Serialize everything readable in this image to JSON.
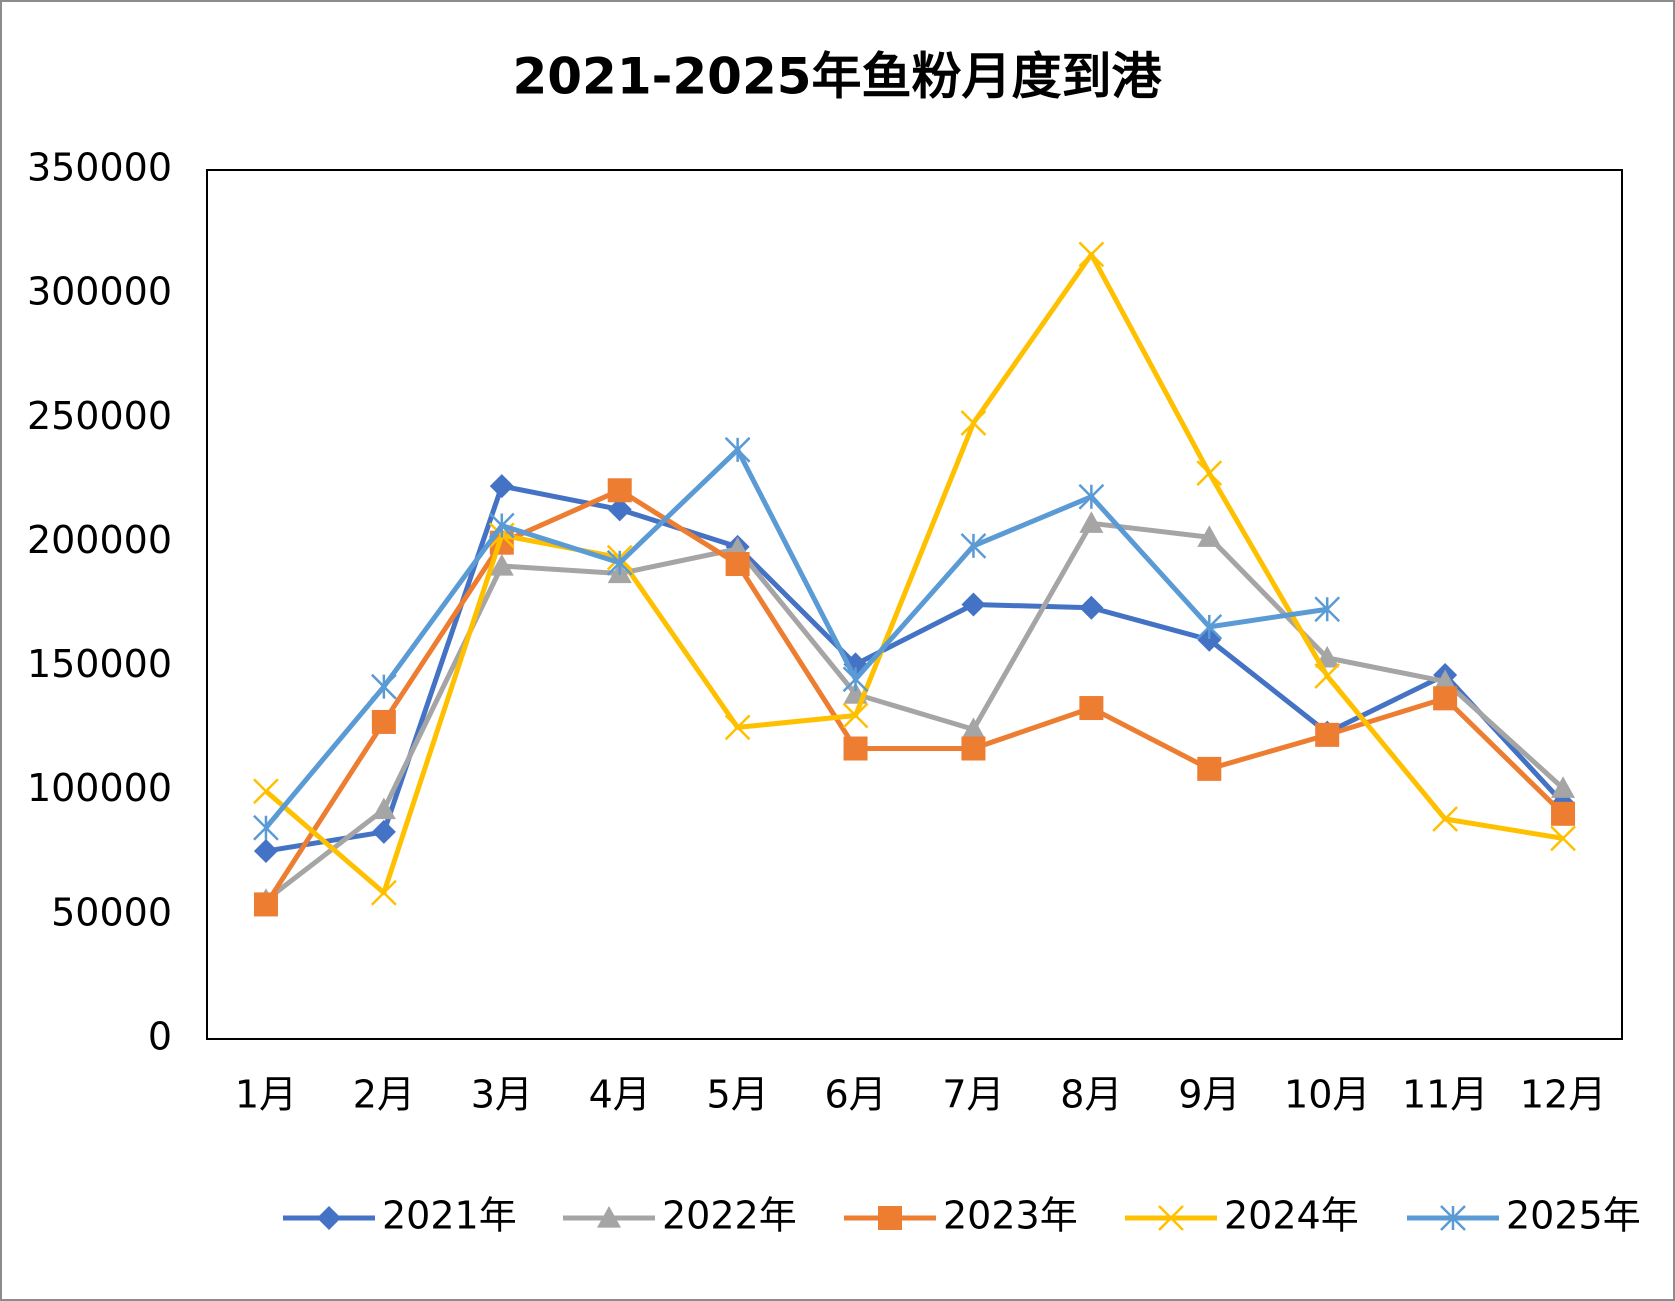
{
  "chart_data": {
    "type": "line",
    "title": "2021-2025年鱼粉月度到港",
    "categories": [
      "1月",
      "2月",
      "3月",
      "4月",
      "5月",
      "6月",
      "7月",
      "8月",
      "9月",
      "10月",
      "11月",
      "12月"
    ],
    "series": [
      {
        "name": "2021年",
        "color": "#4472c4",
        "marker": "diamond",
        "values": [
          75700,
          83400,
          222700,
          213300,
          198200,
          150900,
          175000,
          173700,
          160800,
          123400,
          146600,
          95000
        ]
      },
      {
        "name": "2022年",
        "color": "#a5a5a5",
        "marker": "triangle",
        "values": [
          55900,
          92400,
          190500,
          187500,
          197400,
          138900,
          124700,
          207700,
          202100,
          153500,
          144000,
          101000
        ]
      },
      {
        "name": "2023年",
        "color": "#ed7d31",
        "marker": "square",
        "values": [
          54200,
          127700,
          199900,
          221000,
          191300,
          117000,
          117000,
          133300,
          108800,
          122500,
          137200,
          90700
        ]
      },
      {
        "name": "2024年",
        "color": "#ffc000",
        "marker": "x",
        "values": [
          99800,
          58900,
          202900,
          193900,
          125500,
          130300,
          248100,
          316000,
          227900,
          146200,
          88600,
          80800
        ]
      },
      {
        "name": "2025年",
        "color": "#5b9bd5",
        "marker": "star",
        "values": [
          85100,
          141900,
          206800,
          191800,
          237300,
          144900,
          198600,
          218400,
          166000,
          173100,
          null,
          null
        ]
      }
    ],
    "ylim": [
      0,
      350000
    ],
    "yticks": [
      0,
      50000,
      100000,
      150000,
      200000,
      250000,
      300000,
      350000
    ],
    "grid": false,
    "legend": "bottom"
  }
}
